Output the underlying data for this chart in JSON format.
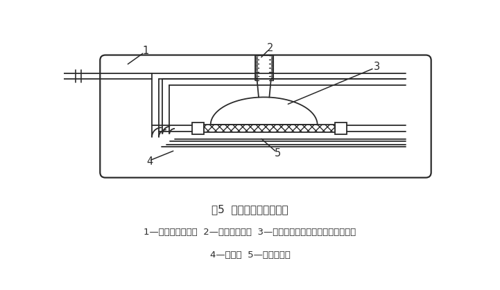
{
  "title": "图5  气体渗漏试验的装置",
  "caption_line1": "1—空气或氮气源；  2—倒置的量筒；  3—漏斗盖住软管及每个套筒的一半；",
  "caption_line2": "4—水槽；  5—试验样管。",
  "bg_color": "#ffffff",
  "line_color": "#2a2a2a",
  "title_fontsize": 11,
  "caption_fontsize": 9.5
}
